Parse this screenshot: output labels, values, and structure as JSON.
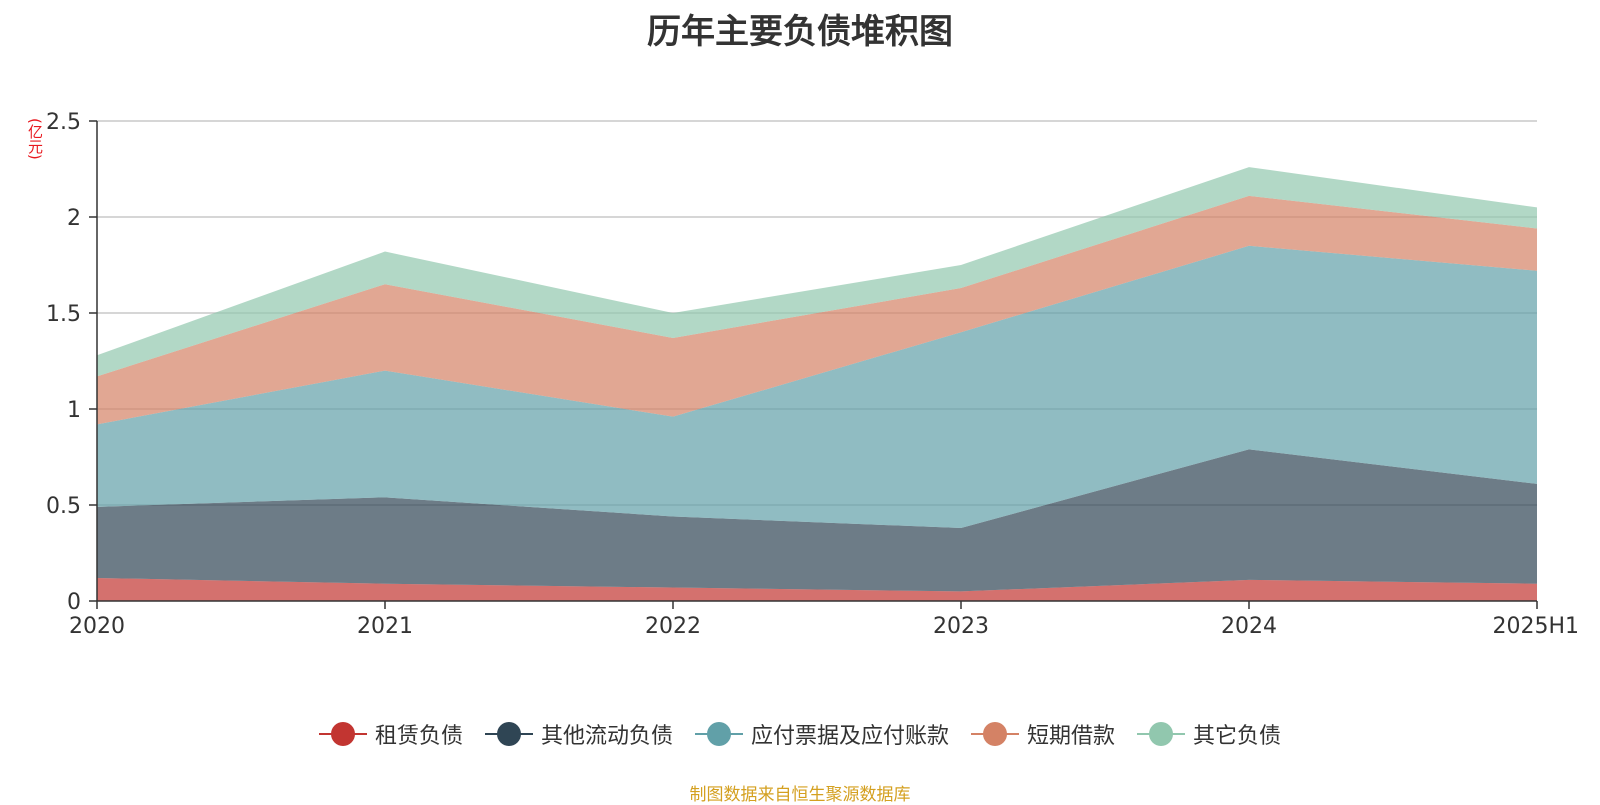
{
  "title": "历年主要负债堆积图",
  "unit_label": "(亿元)",
  "source": "制图数据来自恒生聚源数据库",
  "chart_data": {
    "type": "area",
    "stacked": true,
    "title": "历年主要负债堆积图",
    "ylabel": "(亿元)",
    "categories": [
      "2020",
      "2021",
      "2022",
      "2023",
      "2024",
      "2025H1"
    ],
    "ylim": [
      0,
      2.5
    ],
    "yticks": [
      "0",
      "0.5",
      "1",
      "1.5",
      "2",
      "2.5"
    ],
    "grid": true,
    "legend_position": "bottom",
    "series": [
      {
        "name": "租赁负债",
        "color": "#c23531",
        "values": [
          0.12,
          0.09,
          0.07,
          0.05,
          0.11,
          0.09
        ]
      },
      {
        "name": "其他流动负债",
        "color": "#2f4554",
        "values": [
          0.37,
          0.45,
          0.37,
          0.33,
          0.68,
          0.52
        ]
      },
      {
        "name": "应付票据及应付账款",
        "color": "#61a0a8",
        "values": [
          0.43,
          0.66,
          0.52,
          1.02,
          1.06,
          1.11
        ]
      },
      {
        "name": "短期借款",
        "color": "#d48265",
        "values": [
          0.25,
          0.45,
          0.41,
          0.23,
          0.26,
          0.22
        ]
      },
      {
        "name": "其它负债",
        "color": "#91c7ae",
        "values": [
          0.11,
          0.17,
          0.13,
          0.12,
          0.15,
          0.11
        ]
      }
    ]
  }
}
